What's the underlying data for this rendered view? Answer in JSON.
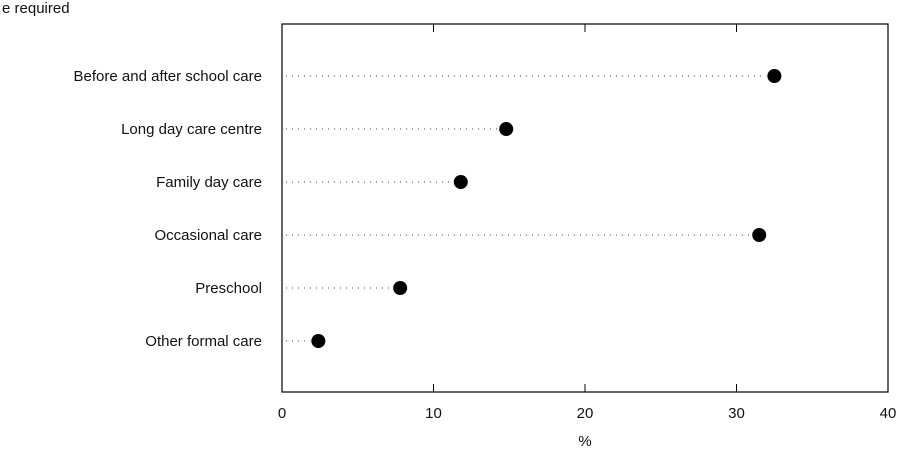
{
  "header": {
    "caption": "e required"
  },
  "chart_data": {
    "type": "scatter",
    "title": "",
    "xlabel": "%",
    "ylabel": "",
    "xlim": [
      0,
      40
    ],
    "x_ticks": [
      0,
      10,
      20,
      30,
      40
    ],
    "grid": false,
    "categories": [
      "Before and after school care",
      "Long day care centre",
      "Family day care",
      "Occasional care",
      "Preschool",
      "Other formal care"
    ],
    "values": [
      32.5,
      14.8,
      11.8,
      31.5,
      7.8,
      2.4
    ],
    "marker_color": "#000000"
  }
}
